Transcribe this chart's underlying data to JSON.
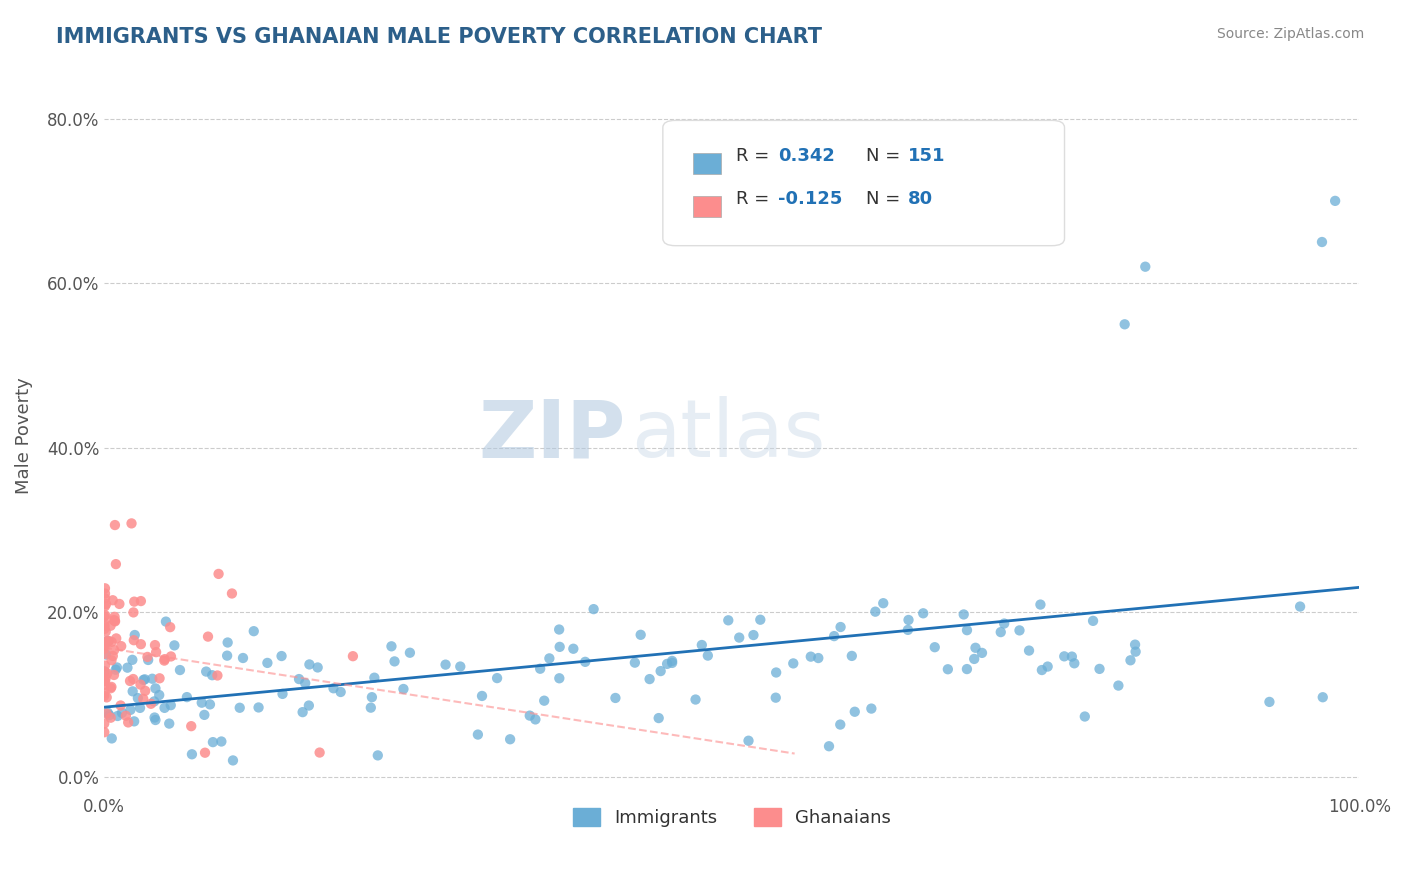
{
  "title": "IMMIGRANTS VS GHANAIAN MALE POVERTY CORRELATION CHART",
  "source": "Source: ZipAtlas.com",
  "xlabel": "",
  "ylabel": "Male Poverty",
  "xlim": [
    0.0,
    1.0
  ],
  "ylim": [
    -0.02,
    0.85
  ],
  "xtick_labels": [
    "0.0%",
    "100.0%"
  ],
  "ytick_labels": [
    "0.0%",
    "20.0%",
    "40.0%",
    "60.0%",
    "80.0%"
  ],
  "ytick_values": [
    0.0,
    0.2,
    0.4,
    0.6,
    0.8
  ],
  "immigrants_R": 0.342,
  "immigrants_N": 151,
  "ghanaians_R": -0.125,
  "ghanaians_N": 80,
  "immigrants_color": "#6baed6",
  "ghanaians_color": "#fc8d8d",
  "immigrants_line_color": "#2171b5",
  "ghanaians_line_color": "#fc8d8d",
  "legend_immigrants_label": "Immigrants",
  "legend_ghanaians_label": "Ghanaians",
  "watermark_zip": "ZIP",
  "watermark_atlas": "atlas",
  "title_color": "#2c5f8a",
  "source_color": "#888888",
  "axis_label_color": "#555555",
  "tick_color": "#555555",
  "grid_color": "#cccccc",
  "legend_text_color": "#333333",
  "stat_value_color": "#2171b5",
  "background_color": "#ffffff",
  "plot_bg_color": "#ffffff"
}
